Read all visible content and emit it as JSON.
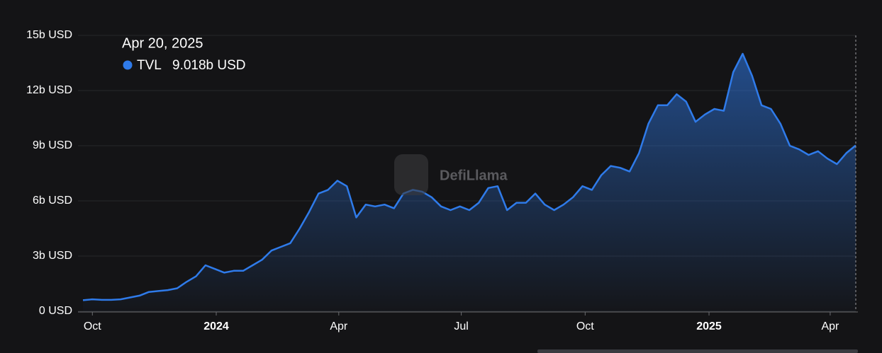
{
  "chart_data": {
    "type": "area",
    "watermark": "DefiLlama",
    "tooltip": {
      "date": "Apr 20, 2025",
      "series_name": "TVL",
      "value_label": "9.018b USD"
    },
    "series": [
      {
        "name": "TVL",
        "color": "#2f7bea",
        "x": [
          "2023-09-24",
          "2023-10-01",
          "2023-10-08",
          "2023-10-15",
          "2023-10-22",
          "2023-10-29",
          "2023-11-05",
          "2023-11-12",
          "2023-11-19",
          "2023-11-26",
          "2023-12-03",
          "2023-12-10",
          "2023-12-17",
          "2023-12-24",
          "2023-12-31",
          "2024-01-07",
          "2024-01-14",
          "2024-01-21",
          "2024-01-28",
          "2024-02-04",
          "2024-02-11",
          "2024-02-18",
          "2024-02-25",
          "2024-03-03",
          "2024-03-10",
          "2024-03-17",
          "2024-03-24",
          "2024-03-31",
          "2024-04-07",
          "2024-04-14",
          "2024-04-21",
          "2024-04-28",
          "2024-05-05",
          "2024-05-12",
          "2024-05-19",
          "2024-05-26",
          "2024-06-02",
          "2024-06-09",
          "2024-06-16",
          "2024-06-23",
          "2024-06-30",
          "2024-07-07",
          "2024-07-14",
          "2024-07-21",
          "2024-07-28",
          "2024-08-04",
          "2024-08-11",
          "2024-08-18",
          "2024-08-25",
          "2024-09-01",
          "2024-09-08",
          "2024-09-15",
          "2024-09-22",
          "2024-09-29",
          "2024-10-06",
          "2024-10-13",
          "2024-10-20",
          "2024-10-27",
          "2024-11-03",
          "2024-11-10",
          "2024-11-17",
          "2024-11-24",
          "2024-12-01",
          "2024-12-08",
          "2024-12-15",
          "2024-12-22",
          "2024-12-29",
          "2025-01-05",
          "2025-01-12",
          "2025-01-19",
          "2025-01-26",
          "2025-02-02",
          "2025-02-09",
          "2025-02-16",
          "2025-02-23",
          "2025-03-02",
          "2025-03-09",
          "2025-03-16",
          "2025-03-23",
          "2025-03-30",
          "2025-04-06",
          "2025-04-13",
          "2025-04-20"
        ],
        "values": [
          0.6,
          0.65,
          0.62,
          0.62,
          0.65,
          0.75,
          0.85,
          1.05,
          1.1,
          1.15,
          1.25,
          1.6,
          1.9,
          2.5,
          2.3,
          2.1,
          2.2,
          2.2,
          2.5,
          2.8,
          3.3,
          3.5,
          3.7,
          4.5,
          5.4,
          6.4,
          6.6,
          7.1,
          6.8,
          5.1,
          5.8,
          5.7,
          5.8,
          5.6,
          6.4,
          6.6,
          6.5,
          6.2,
          5.7,
          5.5,
          5.7,
          5.5,
          5.9,
          6.7,
          6.8,
          5.5,
          5.9,
          5.9,
          6.4,
          5.8,
          5.5,
          5.8,
          6.2,
          6.8,
          6.6,
          7.4,
          7.9,
          7.8,
          7.6,
          8.6,
          10.2,
          11.2,
          11.2,
          11.8,
          11.4,
          10.3,
          10.7,
          11.0,
          10.9,
          13.0,
          14.0,
          12.8,
          11.2,
          11.0,
          10.2,
          9.0,
          8.8,
          8.5,
          8.7,
          8.3,
          8.0,
          8.6,
          9.018
        ]
      }
    ],
    "xlim": [
      "2023-09-24",
      "2025-04-20"
    ],
    "xticks": [
      {
        "value": "2023-10-01",
        "label": "Oct"
      },
      {
        "value": "2024-01-01",
        "label": "2024"
      },
      {
        "value": "2024-04-01",
        "label": "Apr"
      },
      {
        "value": "2024-07-01",
        "label": "Jul"
      },
      {
        "value": "2024-10-01",
        "label": "Oct"
      },
      {
        "value": "2025-01-01",
        "label": "2025"
      },
      {
        "value": "2025-04-01",
        "label": "Apr"
      }
    ],
    "ylim": [
      0,
      15
    ],
    "yticks": [
      {
        "value": 0,
        "label": "0 USD"
      },
      {
        "value": 3,
        "label": "3b USD"
      },
      {
        "value": 6,
        "label": "6b USD"
      },
      {
        "value": 9,
        "label": "9b USD"
      },
      {
        "value": 12,
        "label": "12b USD"
      },
      {
        "value": 15,
        "label": "15b USD"
      }
    ],
    "grid": true
  }
}
